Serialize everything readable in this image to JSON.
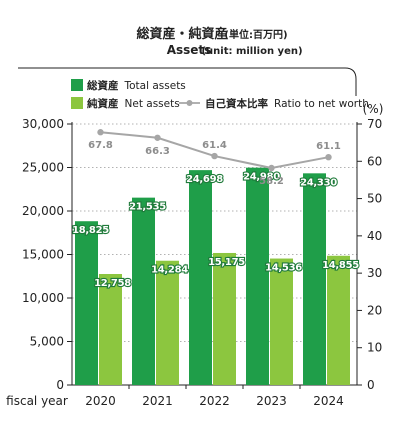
{
  "title_jp": "総資産・純資産",
  "title_jp_unit": "(単位:百万円)",
  "title_en": "Assets",
  "title_en_unit": "(unit: million yen)",
  "right_axis_unit": "(%)",
  "x_axis_label": "fiscal year",
  "legend": {
    "total_assets": {
      "jp": "総資産",
      "en": "Total assets"
    },
    "net_assets": {
      "jp": "純資産",
      "en": "Net assets"
    },
    "ratio": {
      "jp": "自己資本比率",
      "en": "Ratio to net worth"
    }
  },
  "colors": {
    "total_assets": "#1f9e49",
    "net_assets": "#8cc63f",
    "ratio": "#a6a6a6",
    "label_outline": "#1f7a3a"
  },
  "chart_data": {
    "type": "bar",
    "categories": [
      "2020",
      "2021",
      "2022",
      "2023",
      "2024"
    ],
    "series": [
      {
        "name": "総資産 Total assets",
        "values": [
          18825,
          21535,
          24698,
          24980,
          24330
        ],
        "value_labels": [
          "18,825",
          "21,535",
          "24,698",
          "24,980",
          "24,330"
        ]
      },
      {
        "name": "純資産 Net assets",
        "values": [
          12758,
          14284,
          15175,
          14536,
          14855
        ],
        "value_labels": [
          "12,758",
          "14,284",
          "15,175",
          "14,536",
          "14,855"
        ]
      },
      {
        "name": "自己資本比率 Ratio to net worth",
        "type": "line",
        "axis": "right",
        "values": [
          67.8,
          66.3,
          61.4,
          58.2,
          61.1
        ],
        "value_labels": [
          "67.8",
          "66.3",
          "61.4",
          "58.2",
          "61.1"
        ]
      }
    ],
    "ylim": [
      0,
      30000
    ],
    "y_ticks": [
      0,
      5000,
      10000,
      15000,
      20000,
      25000,
      30000
    ],
    "y_tick_labels": [
      "0",
      "5,000",
      "10,000",
      "15,000",
      "20,000",
      "25,000",
      "30,000"
    ],
    "y2lim": [
      0,
      70
    ],
    "y2_ticks": [
      0,
      10,
      20,
      30,
      40,
      50,
      60,
      70
    ],
    "y2_tick_labels": [
      "0",
      "10",
      "20",
      "30",
      "40",
      "50",
      "60",
      "70"
    ],
    "xlabel": "fiscal year",
    "ylabel": "",
    "grid": "horizontal dotted",
    "legend_position": "top-left"
  }
}
